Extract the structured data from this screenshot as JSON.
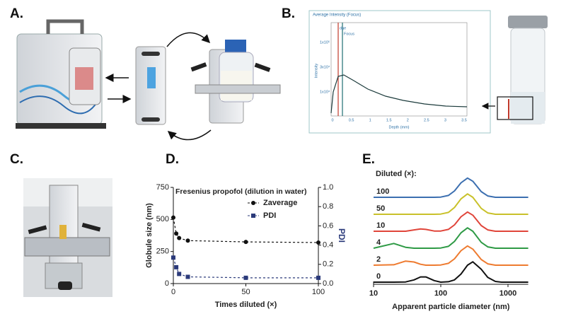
{
  "figure": {
    "panel_labels": [
      "A.",
      "B.",
      "C.",
      "D.",
      "E."
    ],
    "screenshot": {
      "title": "Average Intensity (Focus)",
      "markers": [
        "dge",
        "Focus"
      ],
      "y_label": "Intensity",
      "x_label": "Depth (mm)",
      "x_ticks": [
        "0",
        "0.5",
        "1",
        "1.5",
        "2",
        "2.5",
        "3",
        "3.5"
      ],
      "y_ticks": [
        "1x10⁵",
        "3x10⁴",
        "1x10⁴"
      ]
    }
  },
  "chart_data": [
    {
      "type": "line",
      "title": "Fresenius propofol (dilution in water)",
      "x_label": "Times diluted (×)",
      "y_label": "Globule size (nm)",
      "y2_label": "PDI",
      "xlim": [
        0,
        100
      ],
      "xticks": [
        0,
        50,
        100
      ],
      "ylim": [
        0,
        750
      ],
      "yticks": [
        0,
        250,
        500,
        750
      ],
      "y2lim": [
        0,
        1
      ],
      "y2ticks": [
        {
          "value": 0,
          "label": "0.0"
        },
        0.2,
        0.4,
        0.6,
        0.8,
        {
          "value": 1,
          "label": "1.0"
        }
      ],
      "x": [
        0,
        2,
        4,
        10,
        50,
        100
      ],
      "legend": "upper right",
      "series": [
        {
          "name": "Zaverage",
          "color": "#111111",
          "marker": "circle",
          "values": [
            515,
            390,
            355,
            335,
            325,
            320
          ]
        },
        {
          "name": "PDI",
          "color": "#2b3a7a",
          "marker": "square",
          "axis": "y2",
          "values": [
            0.27,
            0.17,
            0.1,
            0.07,
            0.06,
            0.06
          ]
        }
      ]
    },
    {
      "type": "ridgeline",
      "x_label": "Apparent particle diameter (nm)",
      "log_x": true,
      "xlim": [
        10,
        2000
      ],
      "xticks": [
        10,
        100,
        1000
      ],
      "legend_title": "Diluted (×):",
      "x": [
        10,
        20,
        30,
        40,
        50,
        60,
        80,
        100,
        130,
        160,
        200,
        250,
        300,
        400,
        500,
        650,
        800,
        1000,
        1500,
        2000
      ],
      "series": [
        {
          "name": "0",
          "color": "#111111",
          "values": [
            0,
            0,
            0.01,
            0.1,
            0.23,
            0.23,
            0.07,
            0,
            0.02,
            0.1,
            0.36,
            0.75,
            0.9,
            0.57,
            0.21,
            0.03,
            0,
            0,
            0,
            0
          ]
        },
        {
          "name": "2",
          "color": "#ee7b30",
          "values": [
            0,
            0.02,
            0.18,
            0.14,
            0.04,
            0,
            0,
            0.01,
            0.08,
            0.28,
            0.64,
            0.85,
            0.71,
            0.25,
            0.06,
            0,
            0,
            0,
            0,
            0
          ]
        },
        {
          "name": "4",
          "color": "#2e9a45",
          "values": [
            0,
            0.21,
            0.04,
            0,
            0,
            0,
            0,
            0.01,
            0.08,
            0.3,
            0.68,
            0.9,
            0.75,
            0.26,
            0.06,
            0,
            0,
            0,
            0,
            0
          ]
        },
        {
          "name": "10",
          "color": "#e0453a",
          "values": [
            0,
            0,
            0,
            0.06,
            0.1,
            0.08,
            0.01,
            0.01,
            0.08,
            0.28,
            0.64,
            0.85,
            0.71,
            0.25,
            0.06,
            0,
            0,
            0,
            0,
            0
          ]
        },
        {
          "name": "50",
          "color": "#c9c12a",
          "values": [
            0,
            0,
            0,
            0,
            0,
            0,
            0,
            0.01,
            0.08,
            0.3,
            0.68,
            0.9,
            0.75,
            0.26,
            0.06,
            0,
            0,
            0,
            0,
            0
          ]
        },
        {
          "name": "100",
          "color": "#3c6fb0",
          "values": [
            0,
            0,
            0,
            0,
            0,
            0,
            0,
            0.01,
            0.08,
            0.28,
            0.64,
            0.85,
            0.71,
            0.25,
            0.06,
            0,
            0,
            0,
            0,
            0
          ]
        }
      ]
    }
  ]
}
